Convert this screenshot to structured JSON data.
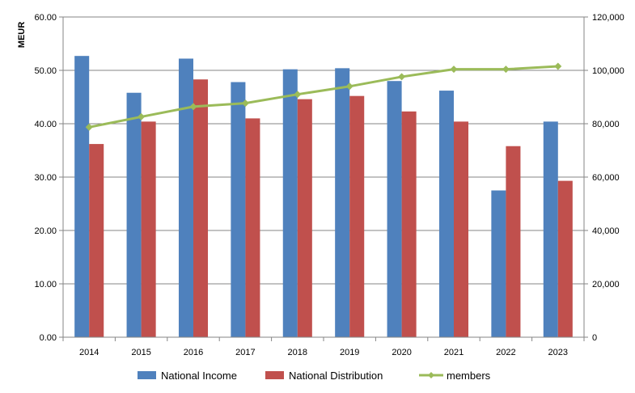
{
  "chart_data": {
    "type": "bar",
    "categories": [
      "2014",
      "2015",
      "2016",
      "2017",
      "2018",
      "2019",
      "2020",
      "2021",
      "2022",
      "2023"
    ],
    "series": [
      {
        "name": "National Income",
        "type": "bar",
        "axis": "left",
        "color": "#4F81BD",
        "values": [
          52.7,
          45.8,
          52.2,
          47.8,
          50.2,
          50.4,
          48.0,
          46.2,
          27.5,
          40.4
        ]
      },
      {
        "name": "National Distribution",
        "type": "bar",
        "axis": "left",
        "color": "#C0504D",
        "values": [
          36.2,
          40.4,
          48.3,
          41.0,
          44.6,
          45.2,
          42.3,
          40.4,
          35.8,
          29.3
        ]
      },
      {
        "name": "members",
        "type": "line",
        "axis": "right",
        "color": "#9BBB59",
        "marker": "diamond",
        "values": [
          78700,
          82600,
          86400,
          87700,
          91000,
          94000,
          97600,
          100400,
          100400,
          101500
        ]
      }
    ],
    "ylabel": "MEUR",
    "ylim": [
      0,
      60
    ],
    "y2lim": [
      0,
      120000
    ],
    "yticks": [
      "0.00",
      "10.00",
      "20.00",
      "30.00",
      "40.00",
      "50.00",
      "60.00"
    ],
    "y2ticks": [
      "0",
      "20,000",
      "40,000",
      "60,000",
      "80,000",
      "100,000",
      "120,000"
    ],
    "grid": true,
    "legend": "bottom"
  }
}
